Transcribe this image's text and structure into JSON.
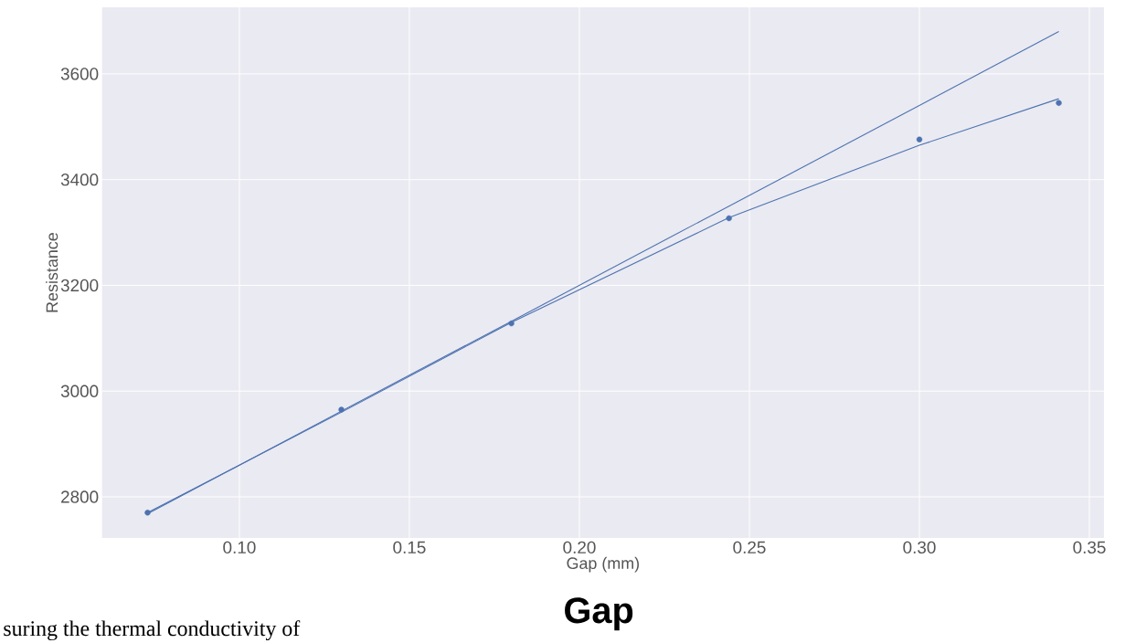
{
  "chart_data": {
    "type": "scatter",
    "xlabel": "Gap (mm)",
    "ylabel": "Resistance",
    "xlim": [
      0.0596,
      0.3543
    ],
    "ylim": [
      2722,
      3726
    ],
    "xticks": [
      {
        "value": 0.1,
        "label": "0.10"
      },
      {
        "value": 0.15,
        "label": "0.15"
      },
      {
        "value": 0.2,
        "label": "0.20"
      },
      {
        "value": 0.25,
        "label": "0.25"
      },
      {
        "value": 0.3,
        "label": "0.30"
      },
      {
        "value": 0.35,
        "label": "0.35"
      }
    ],
    "yticks": [
      2800,
      3000,
      3200,
      3400,
      3600
    ],
    "grid": true,
    "marker": "circle",
    "series": [
      {
        "color": "#4c72b0",
        "x": [
          0.073,
          0.13,
          0.18,
          0.244,
          0.3,
          0.341
        ],
        "values": [
          2770,
          2965,
          3128,
          3327,
          3476,
          3545
        ]
      },
      {
        "type": "line",
        "color": "#4c72b0",
        "marker": "none",
        "x": [
          0.073,
          0.13,
          0.18,
          0.244,
          0.3,
          0.341
        ],
        "values": [
          2770,
          2960,
          3130,
          3328,
          3465,
          3553
        ]
      },
      {
        "type": "line",
        "color": "#4c72b0",
        "marker": "none",
        "x": [
          0.073,
          0.341
        ],
        "values": [
          2768,
          3680
        ]
      }
    ],
    "annotations": [
      "suring the thermal conductivity of",
      "**Gap**"
    ]
  }
}
